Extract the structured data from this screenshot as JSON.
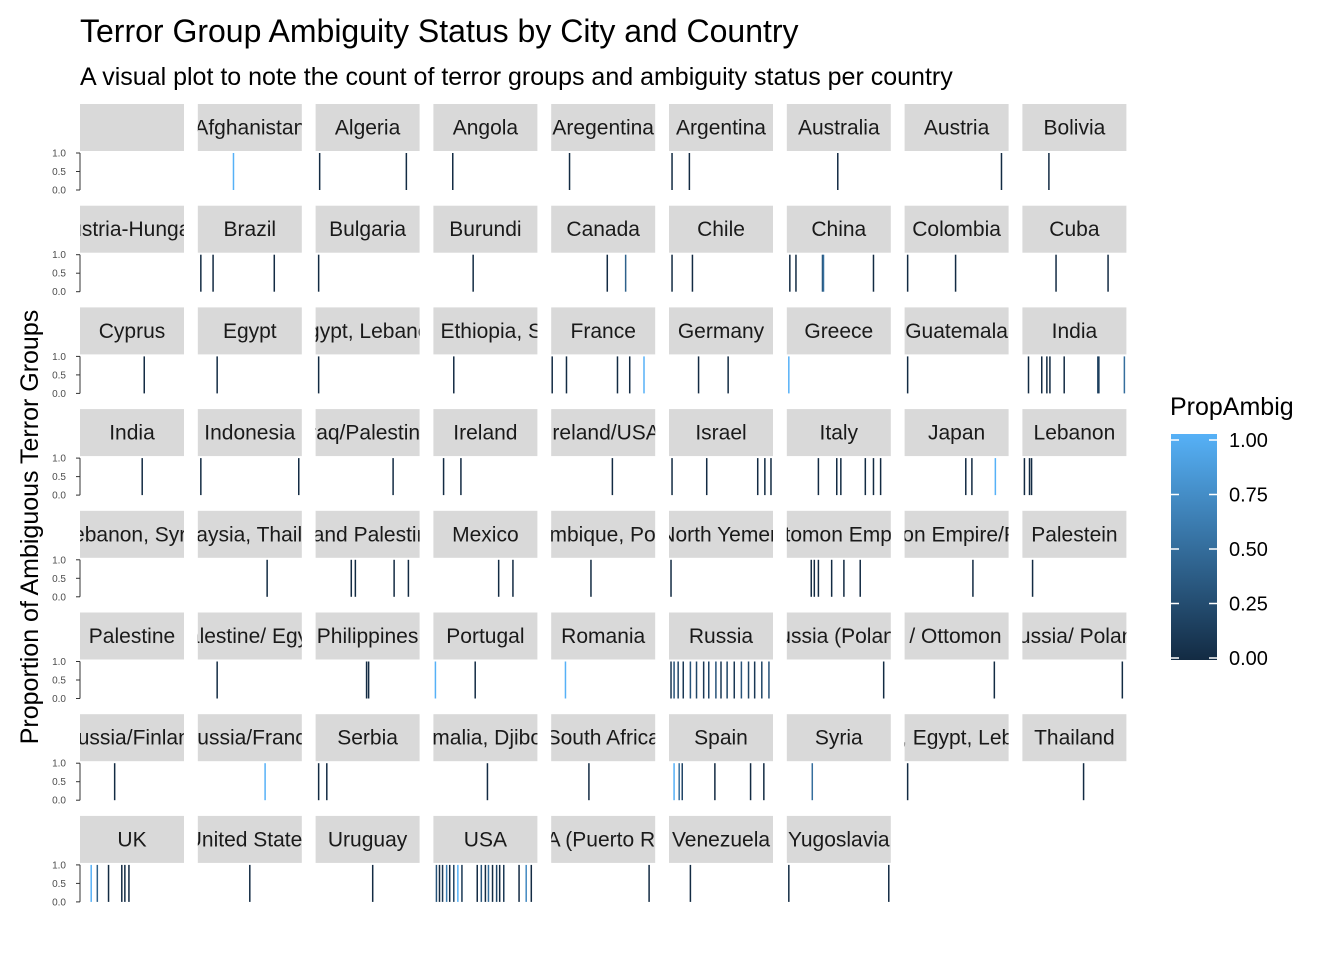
{
  "chart_data": {
    "type": "bar",
    "title": "Terror Group Ambiguity Status by City and Country",
    "subtitle": "A visual plot to note the count of terror groups and ambiguity status per country",
    "xlabel": "",
    "ylabel": "Proportion of Ambiguous Terror Groups",
    "ylim": [
      0,
      1
    ],
    "y_ticks": [
      "0.0",
      "0.5",
      "1.0"
    ],
    "grid": false,
    "facet_by": "country",
    "legend": {
      "title": "PropAmbig",
      "position": "right",
      "ticks": [
        "0.00",
        "0.25",
        "0.50",
        "0.75",
        "1.00"
      ],
      "low_color": "#132B43",
      "high_color": "#56B1F7"
    },
    "panels": [
      {
        "label": "",
        "bars": []
      },
      {
        "label": "Afghanistan",
        "bars": [
          [
            0.34,
            1.0
          ]
        ]
      },
      {
        "label": "Algeria",
        "bars": [
          [
            0.03,
            0.0
          ],
          [
            0.88,
            0.0
          ]
        ]
      },
      {
        "label": "Angola",
        "bars": [
          [
            0.18,
            0.0
          ]
        ]
      },
      {
        "label": "Aregentina",
        "bars": [
          [
            0.17,
            0.0
          ]
        ]
      },
      {
        "label": "Argentina",
        "bars": [
          [
            0.02,
            0.0
          ],
          [
            0.19,
            0.0
          ]
        ]
      },
      {
        "label": "Australia",
        "bars": [
          [
            0.49,
            0.0
          ]
        ]
      },
      {
        "label": "Austria",
        "bars": [
          [
            0.94,
            0.0
          ]
        ]
      },
      {
        "label": "Bolivia",
        "bars": [
          [
            0.25,
            0.0
          ]
        ]
      },
      {
        "label": "(Austria-Hungary)",
        "bars": []
      },
      {
        "label": "Brazil",
        "bars": [
          [
            0.02,
            0.0
          ],
          [
            0.14,
            0.0
          ],
          [
            0.74,
            0.0
          ]
        ]
      },
      {
        "label": "Bulgaria",
        "bars": [
          [
            0.02,
            0.0
          ]
        ]
      },
      {
        "label": "Burundi",
        "bars": [
          [
            0.38,
            0.0
          ]
        ]
      },
      {
        "label": "Canada",
        "bars": [
          [
            0.54,
            0.0
          ],
          [
            0.72,
            0.4
          ]
        ]
      },
      {
        "label": "Chile",
        "bars": [
          [
            0.02,
            0.0
          ],
          [
            0.22,
            0.0
          ]
        ]
      },
      {
        "label": "China",
        "bars": [
          [
            0.02,
            0.0
          ],
          [
            0.08,
            0.0
          ],
          [
            0.34,
            0.3
          ],
          [
            0.35,
            0.5
          ],
          [
            0.84,
            0.0
          ]
        ]
      },
      {
        "label": "Colombia",
        "bars": [
          [
            0.02,
            0.0
          ],
          [
            0.49,
            0.0
          ]
        ]
      },
      {
        "label": "Cuba",
        "bars": [
          [
            0.32,
            0.0
          ],
          [
            0.83,
            0.0
          ]
        ]
      },
      {
        "label": "Cyprus",
        "bars": [
          [
            0.62,
            0.0
          ]
        ]
      },
      {
        "label": "Egypt",
        "bars": [
          [
            0.18,
            0.0
          ]
        ]
      },
      {
        "label": "Egypt, Lebanon",
        "bars": [
          [
            0.02,
            0.0
          ]
        ]
      },
      {
        "label": "Eritrea, Ethiopia, Somalia",
        "bars": [
          [
            0.19,
            0.0
          ]
        ]
      },
      {
        "label": "France",
        "bars": [
          [
            0.0,
            0.0
          ],
          [
            0.14,
            0.0
          ],
          [
            0.64,
            0.0
          ],
          [
            0.76,
            0.0
          ],
          [
            0.9,
            1.0
          ]
        ]
      },
      {
        "label": "Germany",
        "bars": [
          [
            0.28,
            0.0
          ],
          [
            0.57,
            0.0
          ]
        ]
      },
      {
        "label": "Greece",
        "bars": [
          [
            0.01,
            1.0
          ]
        ]
      },
      {
        "label": "Guatemala",
        "bars": [
          [
            0.02,
            0.0
          ]
        ]
      },
      {
        "label": "India",
        "bars": [
          [
            0.05,
            0.0
          ],
          [
            0.18,
            0.0
          ],
          [
            0.23,
            0.0
          ],
          [
            0.26,
            0.0
          ],
          [
            0.4,
            0.0
          ],
          [
            0.73,
            0.15
          ],
          [
            0.74,
            0.15
          ],
          [
            0.99,
            0.5
          ]
        ]
      },
      {
        "label": "India",
        "bars": [
          [
            0.6,
            0.0
          ]
        ]
      },
      {
        "label": "Indonesia",
        "bars": [
          [
            0.02,
            0.0
          ],
          [
            0.98,
            0.0
          ]
        ]
      },
      {
        "label": "Iraq/Palestine",
        "bars": [
          [
            0.75,
            0.0
          ]
        ]
      },
      {
        "label": "Ireland",
        "bars": [
          [
            0.09,
            0.0
          ],
          [
            0.26,
            0.0
          ]
        ]
      },
      {
        "label": "Ireland/USA",
        "bars": [
          [
            0.59,
            0.0
          ]
        ]
      },
      {
        "label": "Israel",
        "bars": [
          [
            0.02,
            0.0
          ],
          [
            0.36,
            0.0
          ],
          [
            0.86,
            0.0
          ],
          [
            0.93,
            0.0
          ],
          [
            0.99,
            0.0
          ]
        ]
      },
      {
        "label": "Italy",
        "bars": [
          [
            0.3,
            0.0
          ],
          [
            0.48,
            0.0
          ],
          [
            0.52,
            0.0
          ],
          [
            0.76,
            0.0
          ],
          [
            0.84,
            0.0
          ],
          [
            0.91,
            0.0
          ]
        ]
      },
      {
        "label": "Japan",
        "bars": [
          [
            0.59,
            0.0
          ],
          [
            0.65,
            0.0
          ],
          [
            0.88,
            1.0
          ]
        ]
      },
      {
        "label": "Lebanon",
        "bars": [
          [
            0.01,
            0.0
          ],
          [
            0.06,
            0.0
          ],
          [
            0.08,
            0.0
          ]
        ]
      },
      {
        "label": "Lebanon, Syria",
        "bars": []
      },
      {
        "label": "Malaysia, Thailand",
        "bars": [
          [
            0.67,
            0.0
          ]
        ]
      },
      {
        "label": "Mand Palestine",
        "bars": [
          [
            0.34,
            0.0
          ],
          [
            0.38,
            0.0
          ],
          [
            0.76,
            0.0
          ],
          [
            0.9,
            0.0
          ]
        ]
      },
      {
        "label": "Mexico",
        "bars": [
          [
            0.63,
            0.0
          ],
          [
            0.77,
            0.0
          ]
        ]
      },
      {
        "label": "Mozambique, Portugal",
        "bars": [
          [
            0.38,
            0.0
          ]
        ]
      },
      {
        "label": "North Yemen",
        "bars": [
          [
            0.01,
            0.0
          ]
        ]
      },
      {
        "label": "Ottomon Empire",
        "bars": [
          [
            0.23,
            0.0
          ],
          [
            0.26,
            0.0
          ],
          [
            0.3,
            0.0
          ],
          [
            0.43,
            0.0
          ],
          [
            0.55,
            0.0
          ],
          [
            0.71,
            0.0
          ]
        ]
      },
      {
        "label": "Ottomon Empire/Russia",
        "bars": [
          [
            0.66,
            0.0
          ]
        ]
      },
      {
        "label": "Palestein",
        "bars": [
          [
            0.09,
            0.0
          ]
        ]
      },
      {
        "label": "Palestine",
        "bars": []
      },
      {
        "label": "Palestine/ Egypt",
        "bars": [
          [
            0.18,
            0.0
          ]
        ]
      },
      {
        "label": "Philippines",
        "bars": [
          [
            0.49,
            0.0
          ],
          [
            0.51,
            0.0
          ]
        ]
      },
      {
        "label": "Portugal",
        "bars": [
          [
            0.01,
            1.0
          ],
          [
            0.4,
            0.0
          ]
        ]
      },
      {
        "label": "Romania",
        "bars": [
          [
            0.13,
            1.0
          ]
        ]
      },
      {
        "label": "Russia",
        "bars": [
          [
            0.01,
            0.1
          ],
          [
            0.04,
            0.3
          ],
          [
            0.08,
            0.2
          ],
          [
            0.13,
            0.1
          ],
          [
            0.2,
            0.3
          ],
          [
            0.26,
            0.2
          ],
          [
            0.33,
            0.1
          ],
          [
            0.38,
            0.2
          ],
          [
            0.45,
            0.3
          ],
          [
            0.5,
            0.1
          ],
          [
            0.56,
            0.2
          ],
          [
            0.63,
            0.1
          ],
          [
            0.7,
            0.3
          ],
          [
            0.77,
            0.2
          ],
          [
            0.83,
            0.1
          ],
          [
            0.9,
            0.2
          ],
          [
            0.97,
            0.3
          ]
        ]
      },
      {
        "label": "Russia (Poland)",
        "bars": [
          [
            0.94,
            0.0
          ]
        ]
      },
      {
        "label": "Russia / Ottomon Empire",
        "bars": [
          [
            0.87,
            0.0
          ]
        ]
      },
      {
        "label": "Russia/ Poland",
        "bars": [
          [
            0.97,
            0.0
          ]
        ]
      },
      {
        "label": "Russia/Finland",
        "bars": [
          [
            0.33,
            0.0
          ]
        ]
      },
      {
        "label": "Russia/France",
        "bars": [
          [
            0.65,
            1.0
          ]
        ]
      },
      {
        "label": "Serbia",
        "bars": [
          [
            0.02,
            0.0
          ],
          [
            0.1,
            0.0
          ]
        ]
      },
      {
        "label": "Somalia, Djibouti",
        "bars": [
          [
            0.52,
            0.0
          ]
        ]
      },
      {
        "label": "South Africa",
        "bars": [
          [
            0.36,
            0.0
          ]
        ]
      },
      {
        "label": "Spain",
        "bars": [
          [
            0.04,
            1.0
          ],
          [
            0.09,
            0.5
          ],
          [
            0.12,
            0.2
          ],
          [
            0.44,
            0.0
          ],
          [
            0.79,
            0.0
          ],
          [
            0.92,
            0.0
          ]
        ]
      },
      {
        "label": "Syria",
        "bars": [
          [
            0.24,
            0.5
          ]
        ]
      },
      {
        "label": "Syria, Egypt, Lebanon",
        "bars": [
          [
            0.02,
            0.0
          ]
        ]
      },
      {
        "label": "Thailand",
        "bars": [
          [
            0.59,
            0.0
          ]
        ]
      },
      {
        "label": "UK",
        "bars": [
          [
            0.1,
            1.0
          ],
          [
            0.16,
            0.4
          ],
          [
            0.27,
            0.0
          ],
          [
            0.4,
            0.0
          ],
          [
            0.43,
            0.0
          ],
          [
            0.47,
            0.0
          ]
        ]
      },
      {
        "label": "United States",
        "bars": [
          [
            0.5,
            0.0
          ]
        ]
      },
      {
        "label": "Uruguay",
        "bars": [
          [
            0.55,
            0.0
          ]
        ]
      },
      {
        "label": "USA",
        "bars": [
          [
            0.02,
            0.3
          ],
          [
            0.05,
            0.0
          ],
          [
            0.08,
            0.1
          ],
          [
            0.12,
            0.6
          ],
          [
            0.15,
            0.0
          ],
          [
            0.19,
            0.2
          ],
          [
            0.23,
            1.0
          ],
          [
            0.27,
            0.1
          ],
          [
            0.42,
            0.0
          ],
          [
            0.46,
            0.3
          ],
          [
            0.5,
            0.0
          ],
          [
            0.53,
            0.5
          ],
          [
            0.57,
            0.0
          ],
          [
            0.61,
            0.2
          ],
          [
            0.64,
            0.0
          ],
          [
            0.68,
            0.1
          ],
          [
            0.83,
            0.0
          ],
          [
            0.9,
            0.7
          ],
          [
            0.95,
            0.0
          ]
        ]
      },
      {
        "label": "USA (Puerto Rico)",
        "bars": [
          [
            0.95,
            0.0
          ]
        ]
      },
      {
        "label": "Venezuela",
        "bars": [
          [
            0.2,
            0.0
          ]
        ]
      },
      {
        "label": "Yugoslavia",
        "bars": [
          [
            0.01,
            0.0
          ],
          [
            0.99,
            0.0
          ]
        ]
      }
    ]
  }
}
